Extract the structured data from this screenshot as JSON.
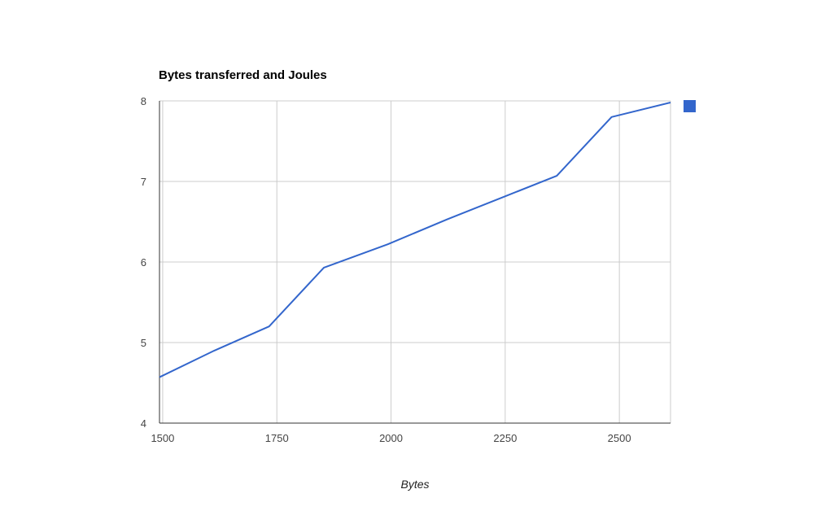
{
  "chart_data": {
    "type": "line",
    "title": "Bytes transferred and Joules",
    "xlabel": "Bytes",
    "ylabel": "",
    "xlim": [
      1493,
      2612
    ],
    "ylim": [
      4,
      8
    ],
    "x_ticks": [
      1500,
      1750,
      2000,
      2250,
      2500
    ],
    "y_ticks": [
      4,
      5,
      6,
      7,
      8
    ],
    "grid": true,
    "legend": "top-right",
    "series": [
      {
        "color": "#3366cc",
        "x": [
          1493,
          1613,
          1733,
          1853,
          1993,
          2123,
          2243,
          2363,
          2483,
          2612
        ],
        "y": [
          4.57,
          4.9,
          5.2,
          5.93,
          6.22,
          6.53,
          6.8,
          7.07,
          7.8,
          7.98
        ]
      }
    ]
  }
}
